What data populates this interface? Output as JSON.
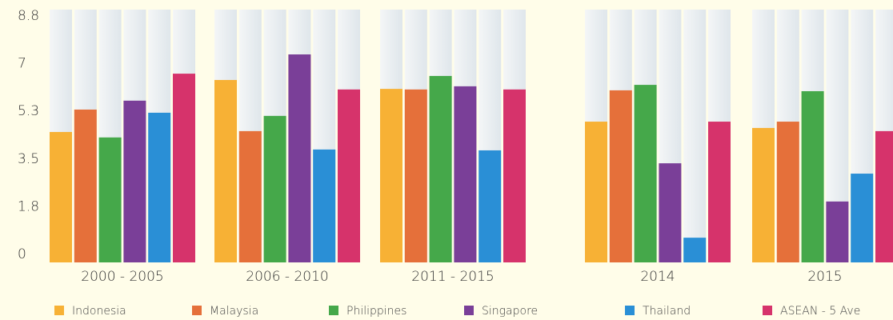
{
  "chart_data": {
    "type": "bar",
    "categories": [
      "2000 - 2005",
      "2006 - 2010",
      "2011 - 2015",
      "2014",
      "2015"
    ],
    "series": [
      {
        "name": "Indonesia",
        "color": "#f7b135",
        "values": [
          4.54,
          6.35,
          6.04,
          4.9,
          4.68
        ]
      },
      {
        "name": "Malaysia",
        "color": "#e5703a",
        "values": [
          5.32,
          4.57,
          6.02,
          5.99,
          4.9
        ]
      },
      {
        "name": "Philippines",
        "color": "#45a84a",
        "values": [
          4.35,
          5.1,
          6.49,
          6.18,
          5.96
        ]
      },
      {
        "name": "Singapore",
        "color": "#7a3f98",
        "values": [
          5.63,
          7.24,
          6.13,
          3.45,
          2.12
        ]
      },
      {
        "name": "Thailand",
        "color": "#2a8fd6",
        "values": [
          5.21,
          3.93,
          3.9,
          0.86,
          3.09
        ]
      },
      {
        "name": "ASEAN - 5 Ave",
        "color": "#d6336b",
        "values": [
          6.57,
          6.02,
          6.02,
          4.9,
          4.57
        ]
      }
    ],
    "ylim": [
      0,
      8.8
    ],
    "yticks": [
      0,
      {
        "value": 1.76,
        "label": "1.8"
      },
      {
        "value": 3.52,
        "label": "3.5"
      },
      {
        "value": 5.28,
        "label": "5.3"
      },
      {
        "value": 7.04,
        "label": "7"
      },
      8.8
    ],
    "grid": false
  }
}
